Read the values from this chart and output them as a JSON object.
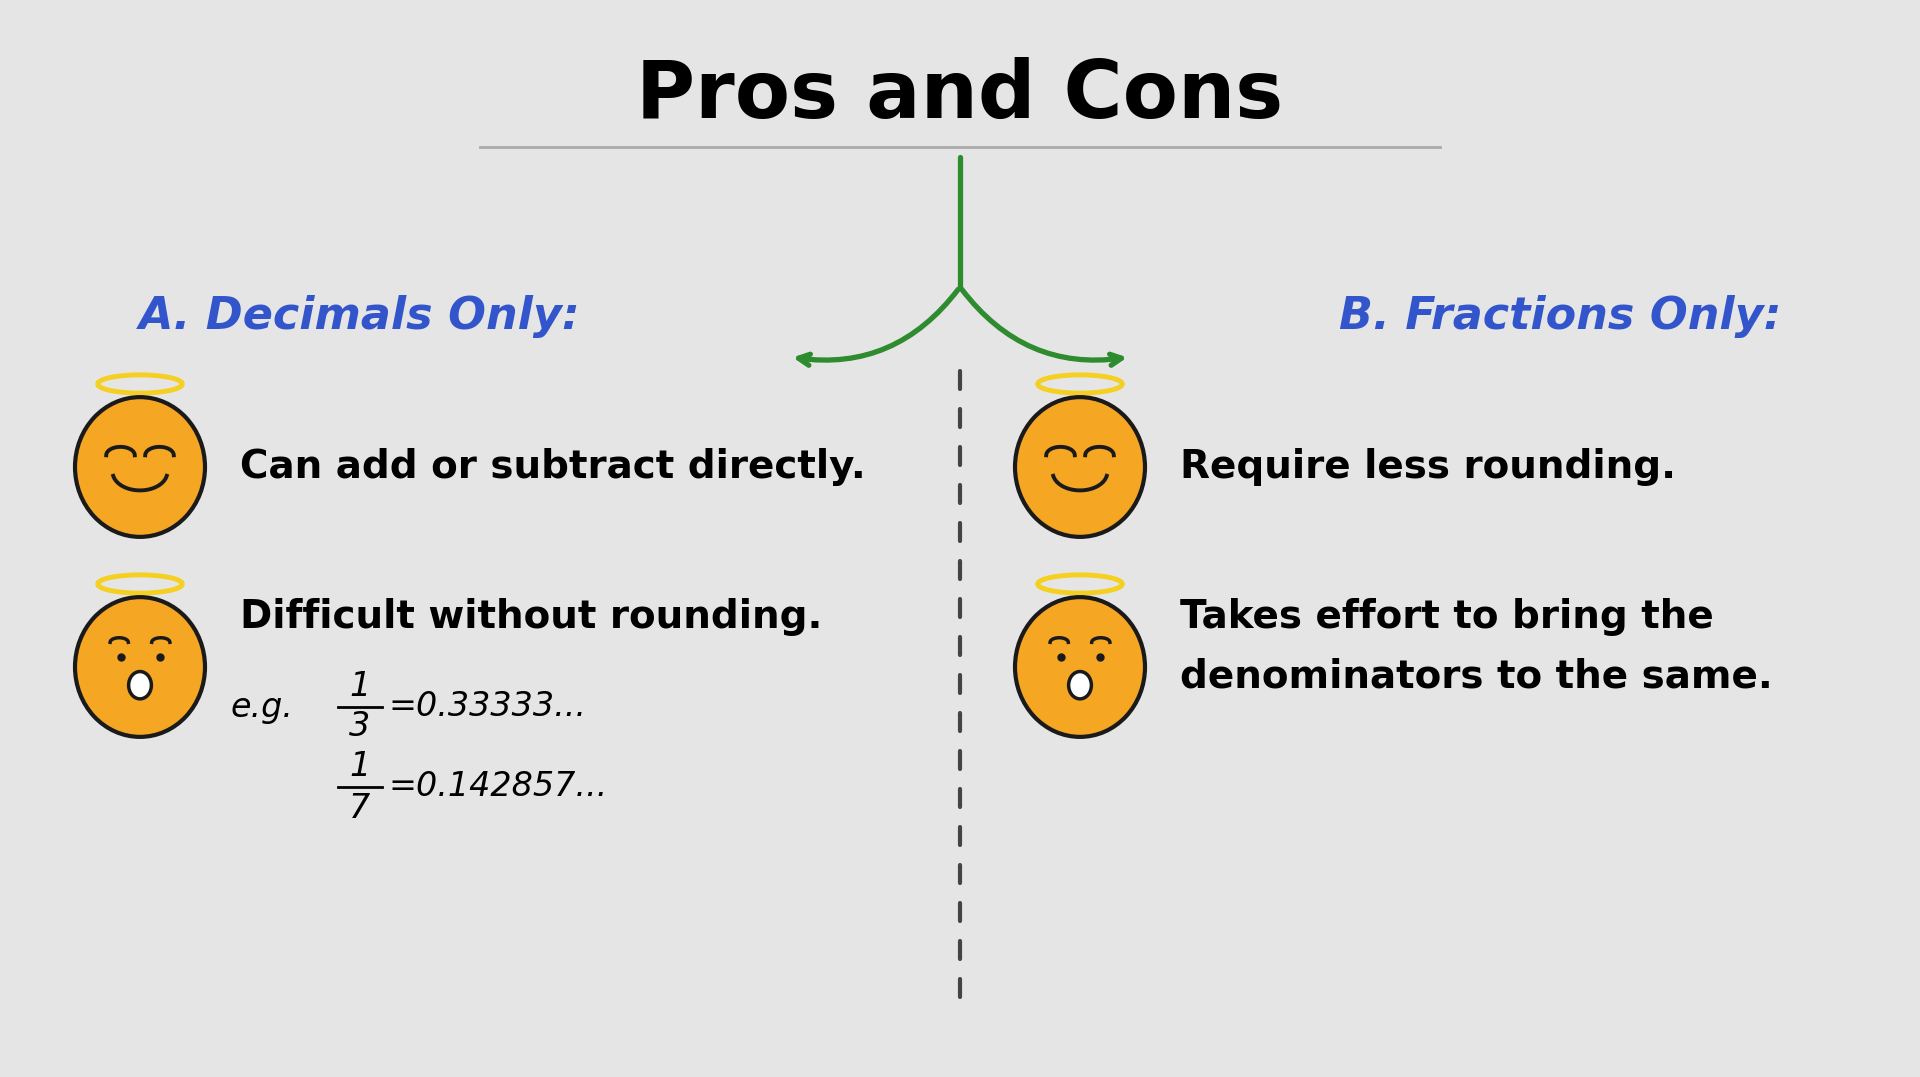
{
  "title": "Pros and Cons",
  "title_fontsize": 58,
  "title_fontweight": "bold",
  "background_color": "#e5e5e5",
  "left_heading": "A. Decimals Only:",
  "right_heading": "B. Fractions Only:",
  "heading_color": "#3355cc",
  "heading_fontsize": 32,
  "left_pro": "Can add or subtract directly.",
  "left_con": "Difficult without rounding.",
  "right_pro": "Require less rounding.",
  "right_con_line1": "Takes effort to bring the",
  "right_con_line2": "denominators to the same.",
  "body_fontsize": 28,
  "body_fontweight": "bold",
  "green_color": "#2e8b2e",
  "dashed_line_color": "#444444",
  "emoji_yellow": "#F5A623",
  "emoji_outline": "#1a1a1a",
  "halo_color": "#F5D020",
  "eg_fontsize": 24
}
